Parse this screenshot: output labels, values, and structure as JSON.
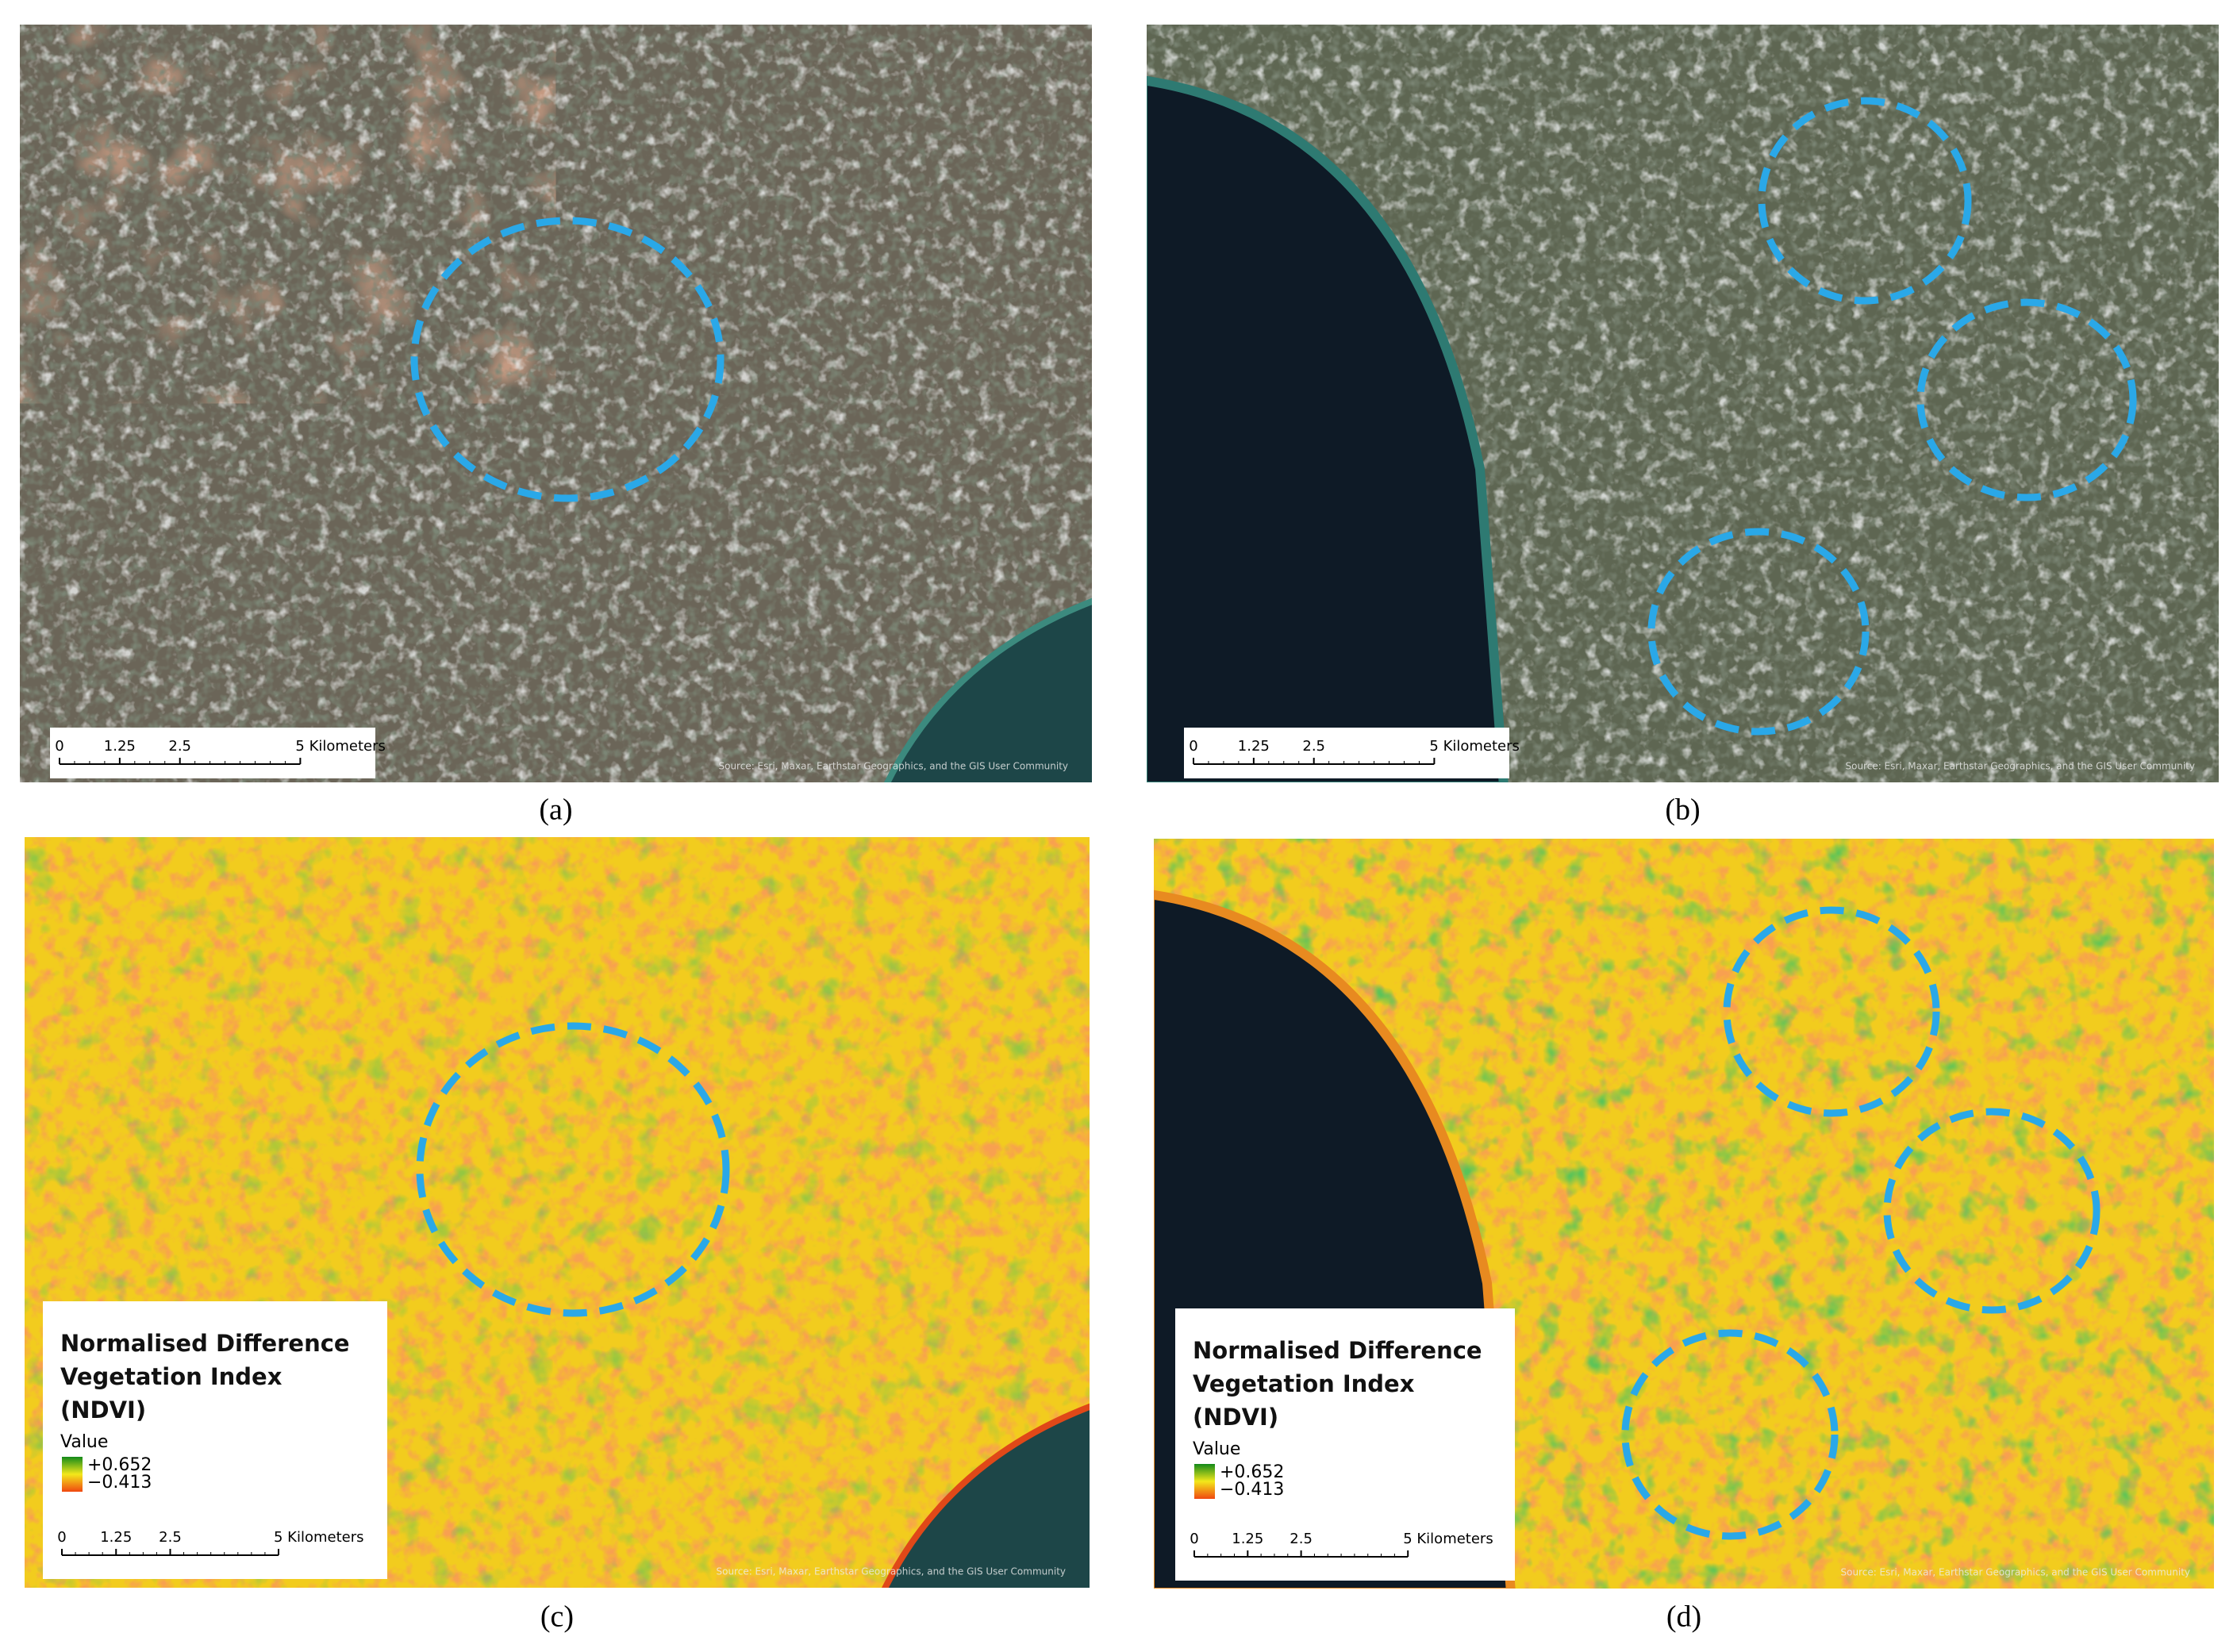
{
  "panels": [
    {
      "label": "(a)",
      "scale_bar": [
        "0",
        "1.25",
        "2.5",
        "5 Kilometers"
      ],
      "attribution": "Source: Esri, Maxar, Earthstar Geographics, and the GIS User Community"
    },
    {
      "label": "(b)",
      "scale_bar": [
        "0",
        "1.25",
        "2.5",
        "5 Kilometers"
      ],
      "attribution": "Source: Esri, Maxar, Earthstar Geographics, and the GIS User Community"
    },
    {
      "label": "(c)",
      "scale_bar": [
        "0",
        "1.25",
        "2.5",
        "5 Kilometers"
      ],
      "attribution": "Source: Esri, Maxar, Earthstar Geographics, and the GIS User Community",
      "legend": {
        "title": [
          "Normalised Difference",
          "Vegetation Index",
          "(NDVI)"
        ],
        "heading": "Value",
        "high": "+0.652",
        "low": "−0.413"
      }
    },
    {
      "label": "(d)",
      "scale_bar": [
        "0",
        "1.25",
        "2.5",
        "5 Kilometers"
      ],
      "attribution": "Source: Esri, Maxar, Earthstar Geographics, and the GIS User Community",
      "legend": {
        "title": [
          "Normalised Difference",
          "Vegetation Index",
          "(NDVI)"
        ],
        "heading": "Value",
        "high": "+0.652",
        "low": "−0.413"
      }
    }
  ]
}
